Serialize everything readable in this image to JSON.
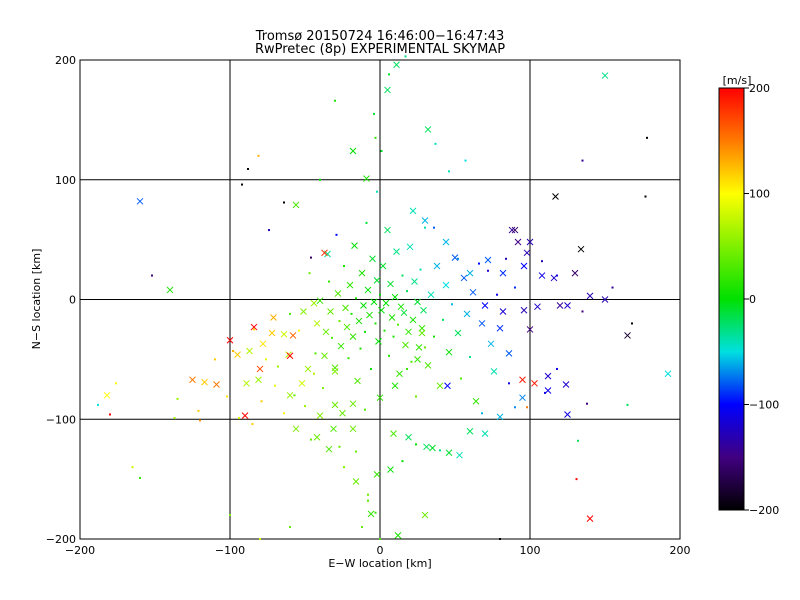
{
  "chart_data": {
    "type": "scatter",
    "title": "Tromsø 20150724 16:46:00−16:47:43",
    "subtitle": "RwPretec (8p) EXPERIMENTAL SKYMAP",
    "xlabel": "E−W location [km]",
    "ylabel": "N−S location [km]",
    "xlim": [
      -200,
      200
    ],
    "ylim": [
      -200,
      200
    ],
    "x_ticks": [
      "−200",
      "−100",
      "0",
      "100",
      "200"
    ],
    "y_ticks": [
      "−200",
      "−100",
      "0",
      "100",
      "200"
    ],
    "grid": true,
    "colorbar": {
      "label": "[m/s]",
      "range": [
        -200,
        200
      ],
      "ticks": [
        "200",
        "100",
        "0",
        "−100",
        "−200"
      ]
    },
    "markers": [
      "cross",
      "dot"
    ],
    "points": [
      [
        -160,
        82,
        -80,
        1
      ],
      [
        -152,
        20,
        -150,
        0
      ],
      [
        -140,
        8,
        10,
        1
      ],
      [
        -137,
        -99,
        60,
        0
      ],
      [
        -135,
        -83,
        60,
        0
      ],
      [
        -121,
        -93,
        120,
        0
      ],
      [
        -117,
        -69,
        120,
        1
      ],
      [
        -109,
        -71,
        150,
        1
      ],
      [
        -100,
        -34,
        200,
        1
      ],
      [
        -98,
        -43,
        130,
        0
      ],
      [
        -94,
        -99,
        80,
        0
      ],
      [
        -89,
        -70,
        70,
        1
      ],
      [
        -87,
        -43,
        70,
        1
      ],
      [
        -84,
        -25,
        110,
        0
      ],
      [
        -81,
        -67,
        60,
        1
      ],
      [
        -79,
        -85,
        120,
        0
      ],
      [
        -78,
        -37,
        110,
        1
      ],
      [
        -76,
        -50,
        90,
        0
      ],
      [
        -72,
        -28,
        120,
        1
      ],
      [
        -68,
        -56,
        60,
        0
      ],
      [
        -64,
        -29,
        80,
        1
      ],
      [
        -61,
        -46,
        70,
        1
      ],
      [
        -60,
        -12,
        30,
        0
      ],
      [
        -57,
        -80,
        40,
        0
      ],
      [
        -54,
        -26,
        100,
        0
      ],
      [
        -51,
        -10,
        50,
        1
      ],
      [
        -48,
        -58,
        60,
        1
      ],
      [
        -47,
        22,
        40,
        0
      ],
      [
        -44,
        -3,
        60,
        1
      ],
      [
        -43,
        -45,
        30,
        0
      ],
      [
        -42,
        -20,
        70,
        1
      ],
      [
        -40,
        -1,
        20,
        1
      ],
      [
        -38,
        -74,
        50,
        0
      ],
      [
        -37,
        -47,
        40,
        1
      ],
      [
        -36,
        -27,
        40,
        1
      ],
      [
        -35,
        38,
        -30,
        1
      ],
      [
        -34,
        15,
        20,
        0
      ],
      [
        -33,
        -10,
        40,
        1
      ],
      [
        -32,
        -32,
        30,
        0
      ],
      [
        -30,
        -57,
        30,
        1
      ],
      [
        -29,
        54,
        -100,
        0
      ],
      [
        -28,
        5,
        30,
        1
      ],
      [
        -27,
        -18,
        40,
        0
      ],
      [
        -26,
        -39,
        20,
        1
      ],
      [
        -25,
        -95,
        40,
        1
      ],
      [
        -24,
        28,
        10,
        0
      ],
      [
        -23,
        -7,
        30,
        1
      ],
      [
        -22,
        -23,
        30,
        1
      ],
      [
        -21,
        -49,
        20,
        0
      ],
      [
        -20,
        12,
        20,
        1
      ],
      [
        -19,
        -12,
        10,
        0
      ],
      [
        -18,
        -31,
        20,
        1
      ],
      [
        -17,
        45,
        0,
        1
      ],
      [
        -16,
        1,
        10,
        0
      ],
      [
        -15,
        -68,
        30,
        1
      ],
      [
        -14,
        -18,
        10,
        1
      ],
      [
        -13,
        -41,
        10,
        0
      ],
      [
        -12,
        22,
        10,
        1
      ],
      [
        -11,
        -5,
        0,
        1
      ],
      [
        -10,
        -27,
        0,
        0
      ],
      [
        -9,
        64,
        -10,
        0
      ],
      [
        -8,
        8,
        0,
        1
      ],
      [
        -7,
        -13,
        10,
        1
      ],
      [
        -6,
        -58,
        0,
        0
      ],
      [
        -5,
        34,
        -10,
        1
      ],
      [
        -4,
        -2,
        0,
        1
      ],
      [
        -3,
        -20,
        10,
        0
      ],
      [
        -2,
        16,
        -10,
        1
      ],
      [
        -1,
        -35,
        0,
        1
      ],
      [
        0,
        4,
        0,
        0
      ],
      [
        1,
        -9,
        0,
        1
      ],
      [
        2,
        28,
        -10,
        1
      ],
      [
        3,
        -26,
        10,
        0
      ],
      [
        4,
        -3,
        0,
        1
      ],
      [
        5,
        58,
        -20,
        1
      ],
      [
        6,
        -47,
        10,
        0
      ],
      [
        7,
        13,
        -10,
        1
      ],
      [
        8,
        -15,
        10,
        1
      ],
      [
        9,
        -31,
        10,
        0
      ],
      [
        10,
        2,
        0,
        1
      ],
      [
        11,
        40,
        -30,
        1
      ],
      [
        12,
        -21,
        30,
        0
      ],
      [
        13,
        -62,
        20,
        1
      ],
      [
        14,
        -6,
        10,
        1
      ],
      [
        15,
        20,
        -20,
        0
      ],
      [
        16,
        -11,
        -10,
        1
      ],
      [
        17,
        -38,
        30,
        1
      ],
      [
        18,
        7,
        -20,
        0
      ],
      [
        19,
        -27,
        20,
        1
      ],
      [
        20,
        44,
        -40,
        1
      ],
      [
        21,
        -52,
        30,
        0
      ],
      [
        22,
        -17,
        10,
        1
      ],
      [
        23,
        15,
        -30,
        1
      ],
      [
        24,
        -81,
        40,
        0
      ],
      [
        25,
        -2,
        -10,
        1
      ],
      [
        26,
        -40,
        20,
        1
      ],
      [
        27,
        25,
        -40,
        0
      ],
      [
        28,
        -24,
        20,
        1
      ],
      [
        29,
        -9,
        -20,
        1
      ],
      [
        30,
        60,
        -40,
        0
      ],
      [
        32,
        -55,
        30,
        1
      ],
      [
        34,
        4,
        -40,
        1
      ],
      [
        36,
        -31,
        10,
        0
      ],
      [
        38,
        28,
        -60,
        1
      ],
      [
        40,
        -72,
        40,
        1
      ],
      [
        42,
        -17,
        -20,
        0
      ],
      [
        44,
        12,
        -50,
        1
      ],
      [
        46,
        -44,
        0,
        1
      ],
      [
        48,
        -4,
        -60,
        0
      ],
      [
        50,
        35,
        -80,
        1
      ],
      [
        52,
        -28,
        -20,
        1
      ],
      [
        54,
        -66,
        30,
        0
      ],
      [
        56,
        18,
        -80,
        1
      ],
      [
        58,
        -12,
        -60,
        1
      ],
      [
        60,
        -48,
        -30,
        0
      ],
      [
        62,
        6,
        -80,
        1
      ],
      [
        64,
        -85,
        20,
        1
      ],
      [
        66,
        30,
        -100,
        0
      ],
      [
        68,
        -20,
        -80,
        1
      ],
      [
        70,
        -5,
        -100,
        1
      ],
      [
        72,
        24,
        -120,
        0
      ],
      [
        74,
        -37,
        -60,
        1
      ],
      [
        76,
        -60,
        -40,
        1
      ],
      [
        78,
        4,
        -110,
        0
      ],
      [
        80,
        -24,
        -90,
        1
      ],
      [
        82,
        -10,
        -120,
        1
      ],
      [
        84,
        34,
        -130,
        0
      ],
      [
        86,
        -45,
        -80,
        1
      ],
      [
        88,
        58,
        -140,
        1
      ],
      [
        92,
        48,
        -150,
        1
      ],
      [
        96,
        -9,
        -130,
        1
      ],
      [
        100,
        -25,
        -150,
        1
      ],
      [
        105,
        -6,
        -120,
        1
      ],
      [
        112,
        -76,
        -110,
        1
      ],
      [
        120,
        -5,
        -140,
        1
      ],
      [
        117,
        86,
        -200,
        1
      ],
      [
        134,
        42,
        -200,
        1
      ],
      [
        -84,
        -23,
        200,
        1
      ],
      [
        -90,
        -97,
        200,
        1
      ],
      [
        -60,
        -47,
        200,
        1
      ],
      [
        -58,
        -30,
        160,
        1
      ],
      [
        -80,
        -58,
        170,
        1
      ],
      [
        -37,
        39,
        180,
        1
      ],
      [
        -46,
        35,
        -160,
        0
      ],
      [
        -71,
        -15,
        130,
        1
      ],
      [
        -95,
        -46,
        120,
        1
      ],
      [
        -102,
        -81,
        110,
        0
      ],
      [
        -125,
        -67,
        150,
        1
      ],
      [
        -110,
        -50,
        120,
        0
      ],
      [
        -120,
        -101,
        140,
        0
      ],
      [
        -85,
        -104,
        120,
        0
      ],
      [
        -92,
        96,
        -200,
        0
      ],
      [
        -88,
        109,
        -200,
        0
      ],
      [
        -81,
        120,
        130,
        0
      ],
      [
        -64,
        81,
        -200,
        0
      ],
      [
        -74,
        58,
        -130,
        0
      ],
      [
        -56,
        79,
        30,
        1
      ],
      [
        -42,
        -115,
        40,
        1
      ],
      [
        -31,
        -108,
        30,
        1
      ],
      [
        -27,
        -123,
        40,
        0
      ],
      [
        -18,
        -108,
        40,
        1
      ],
      [
        -16,
        -127,
        40,
        0
      ],
      [
        -2,
        -146,
        20,
        1
      ],
      [
        -8,
        -163,
        40,
        0
      ],
      [
        -6,
        -179,
        20,
        1
      ],
      [
        7,
        -142,
        0,
        1
      ],
      [
        9,
        -112,
        30,
        1
      ],
      [
        15,
        -135,
        0,
        0
      ],
      [
        19,
        -115,
        -20,
        1
      ],
      [
        24,
        -121,
        0,
        0
      ],
      [
        31,
        -123,
        -20,
        1
      ],
      [
        35,
        -124,
        -10,
        1
      ],
      [
        40,
        -126,
        -30,
        0
      ],
      [
        46,
        -128,
        -10,
        1
      ],
      [
        53,
        -130,
        -40,
        1
      ],
      [
        45,
        -72,
        -100,
        1
      ],
      [
        -40,
        100,
        0,
        0
      ],
      [
        -18,
        124,
        0,
        1
      ],
      [
        -9,
        101,
        10,
        1
      ],
      [
        1,
        124,
        -10,
        0
      ],
      [
        -4,
        155,
        -10,
        0
      ],
      [
        6,
        188,
        -10,
        0
      ],
      [
        11,
        196,
        -20,
        1
      ],
      [
        17,
        203,
        -30,
        0
      ],
      [
        32,
        142,
        -20,
        1
      ],
      [
        37,
        130,
        -40,
        0
      ],
      [
        46,
        107,
        -40,
        0
      ],
      [
        57,
        116,
        -50,
        0
      ],
      [
        -30,
        166,
        10,
        0
      ],
      [
        -3,
        135,
        20,
        0
      ],
      [
        5,
        175,
        -20,
        1
      ],
      [
        -2,
        90,
        -40,
        0
      ],
      [
        150,
        187,
        -30,
        1
      ],
      [
        135,
        116,
        -140,
        0
      ],
      [
        178,
        135,
        -200,
        0
      ],
      [
        177,
        86,
        -200,
        0
      ],
      [
        168,
        -20,
        -200,
        0
      ],
      [
        132,
        -118,
        -20,
        0
      ],
      [
        165,
        -88,
        -20,
        0
      ],
      [
        192,
        -62,
        -50,
        1
      ],
      [
        -188,
        -88,
        -50,
        0
      ],
      [
        -180,
        -96,
        200,
        0
      ],
      [
        -176,
        -70,
        100,
        0
      ],
      [
        -182,
        -80,
        100,
        1
      ],
      [
        -165,
        -140,
        80,
        0
      ],
      [
        -160,
        -149,
        20,
        0
      ],
      [
        140,
        -183,
        200,
        1
      ],
      [
        131,
        -150,
        200,
        0
      ],
      [
        98,
        -90,
        150,
        0
      ],
      [
        86,
        -70,
        -110,
        0
      ],
      [
        95,
        -67,
        190,
        1
      ],
      [
        103,
        -70,
        190,
        1
      ],
      [
        112,
        -64,
        -120,
        1
      ],
      [
        124,
        -71,
        -120,
        1
      ],
      [
        118,
        -58,
        -110,
        0
      ],
      [
        138,
        -87,
        -150,
        0
      ],
      [
        125,
        -96,
        -110,
        1
      ],
      [
        110,
        -78,
        -110,
        0
      ],
      [
        95,
        -82,
        -70,
        1
      ],
      [
        90,
        -90,
        -70,
        0
      ],
      [
        80,
        -98,
        -60,
        1
      ],
      [
        68,
        -95,
        -60,
        0
      ],
      [
        70,
        -112,
        -40,
        1
      ],
      [
        60,
        -110,
        -20,
        1
      ],
      [
        -12,
        -190,
        40,
        0
      ],
      [
        0,
        -200,
        30,
        0
      ],
      [
        12,
        -197,
        10,
        1
      ],
      [
        80,
        -200,
        -200,
        0
      ],
      [
        -80,
        -200,
        80,
        0
      ],
      [
        -100,
        -180,
        50,
        0
      ],
      [
        -60,
        -190,
        40,
        0
      ],
      [
        30,
        -180,
        40,
        1
      ],
      [
        150,
        0,
        -130,
        1
      ],
      [
        140,
        3,
        -130,
        1
      ],
      [
        135,
        -10,
        -150,
        0
      ],
      [
        125,
        -5,
        -120,
        1
      ],
      [
        155,
        10,
        -140,
        0
      ],
      [
        165,
        -30,
        -180,
        1
      ],
      [
        130,
        22,
        -160,
        1
      ],
      [
        118,
        20,
        -110,
        0
      ],
      [
        108,
        20,
        -110,
        1
      ],
      [
        96,
        28,
        -100,
        1
      ],
      [
        90,
        10,
        -90,
        0
      ],
      [
        82,
        22,
        -90,
        1
      ],
      [
        100,
        48,
        -130,
        1
      ],
      [
        98,
        39,
        -130,
        1
      ],
      [
        108,
        32,
        -130,
        0
      ],
      [
        116,
        18,
        -120,
        1
      ],
      [
        90,
        58,
        -160,
        1
      ],
      [
        72,
        33,
        -80,
        1
      ],
      [
        60,
        22,
        -60,
        1
      ],
      [
        52,
        34,
        -70,
        0
      ],
      [
        44,
        48,
        -60,
        1
      ],
      [
        36,
        60,
        -80,
        0
      ],
      [
        30,
        66,
        -60,
        1
      ],
      [
        22,
        74,
        -40,
        1
      ],
      [
        28,
        -28,
        40,
        1
      ],
      [
        30,
        -40,
        40,
        0
      ],
      [
        25,
        -50,
        20,
        1
      ],
      [
        18,
        -58,
        20,
        0
      ],
      [
        10,
        -72,
        10,
        1
      ],
      [
        0,
        -82,
        20,
        1
      ],
      [
        -10,
        -92,
        30,
        0
      ],
      [
        -18,
        -87,
        40,
        1
      ],
      [
        -60,
        -80,
        60,
        1
      ],
      [
        -50,
        -89,
        60,
        0
      ],
      [
        -40,
        -97,
        50,
        1
      ],
      [
        -30,
        -88,
        40,
        1
      ],
      [
        -70,
        -72,
        90,
        0
      ],
      [
        -30,
        -60,
        50,
        1
      ],
      [
        -44,
        -62,
        70,
        0
      ],
      [
        -52,
        -70,
        80,
        1
      ],
      [
        -64,
        -95,
        100,
        0
      ],
      [
        -56,
        -108,
        50,
        1
      ],
      [
        -46,
        -117,
        40,
        0
      ],
      [
        -34,
        -125,
        30,
        1
      ],
      [
        -24,
        -140,
        50,
        0
      ],
      [
        -16,
        -152,
        40,
        1
      ],
      [
        -8,
        -168,
        30,
        0
      ],
      [
        -3,
        -178,
        20,
        0
      ]
    ]
  }
}
